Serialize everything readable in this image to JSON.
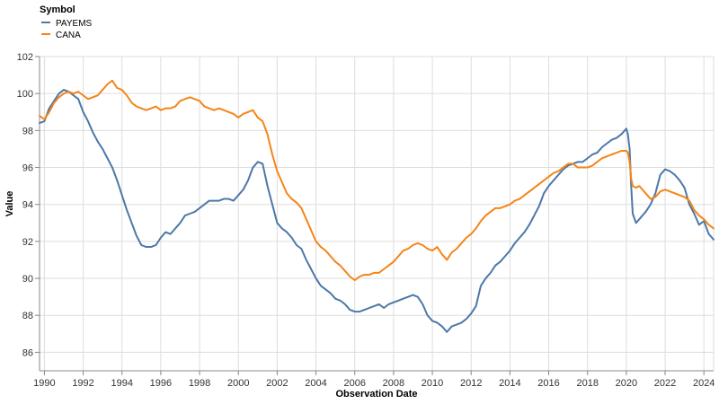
{
  "chart_data": {
    "type": "line",
    "xlabel": "Observation Date",
    "ylabel": "Value",
    "xlim": [
      1989.75,
      2024.5
    ],
    "ylim": [
      85,
      102
    ],
    "x_ticks": [
      1990,
      1992,
      1994,
      1996,
      1998,
      2000,
      2002,
      2004,
      2006,
      2008,
      2010,
      2012,
      2014,
      2016,
      2018,
      2020,
      2022,
      2024
    ],
    "y_ticks": [
      86,
      88,
      90,
      92,
      94,
      96,
      98,
      100,
      102
    ],
    "grid": true,
    "legend": {
      "title": "Symbol",
      "placement": "top-left"
    },
    "series": [
      {
        "name": "PAYEMS",
        "color": "#4c78a8",
        "points": [
          [
            1989.75,
            98.4
          ],
          [
            1990.0,
            98.5
          ],
          [
            1990.25,
            99.2
          ],
          [
            1990.5,
            99.6
          ],
          [
            1990.75,
            100.0
          ],
          [
            1991.0,
            100.2
          ],
          [
            1991.25,
            100.1
          ],
          [
            1991.5,
            99.9
          ],
          [
            1991.75,
            99.7
          ],
          [
            1992.0,
            99.0
          ],
          [
            1992.25,
            98.5
          ],
          [
            1992.5,
            97.9
          ],
          [
            1992.75,
            97.4
          ],
          [
            1993.0,
            97.0
          ],
          [
            1993.25,
            96.5
          ],
          [
            1993.5,
            96.0
          ],
          [
            1993.75,
            95.3
          ],
          [
            1994.0,
            94.5
          ],
          [
            1994.25,
            93.7
          ],
          [
            1994.5,
            93.0
          ],
          [
            1994.75,
            92.3
          ],
          [
            1995.0,
            91.8
          ],
          [
            1995.25,
            91.7
          ],
          [
            1995.5,
            91.7
          ],
          [
            1995.75,
            91.8
          ],
          [
            1996.0,
            92.2
          ],
          [
            1996.25,
            92.5
          ],
          [
            1996.5,
            92.4
          ],
          [
            1996.75,
            92.7
          ],
          [
            1997.0,
            93.0
          ],
          [
            1997.25,
            93.4
          ],
          [
            1997.5,
            93.5
          ],
          [
            1997.75,
            93.6
          ],
          [
            1998.0,
            93.8
          ],
          [
            1998.25,
            94.0
          ],
          [
            1998.5,
            94.2
          ],
          [
            1998.75,
            94.2
          ],
          [
            1999.0,
            94.2
          ],
          [
            1999.25,
            94.3
          ],
          [
            1999.5,
            94.3
          ],
          [
            1999.75,
            94.2
          ],
          [
            2000.0,
            94.5
          ],
          [
            2000.25,
            94.8
          ],
          [
            2000.5,
            95.3
          ],
          [
            2000.75,
            96.0
          ],
          [
            2001.0,
            96.3
          ],
          [
            2001.25,
            96.2
          ],
          [
            2001.5,
            95.0
          ],
          [
            2001.75,
            94.0
          ],
          [
            2002.0,
            93.0
          ],
          [
            2002.25,
            92.7
          ],
          [
            2002.5,
            92.5
          ],
          [
            2002.75,
            92.2
          ],
          [
            2003.0,
            91.8
          ],
          [
            2003.25,
            91.6
          ],
          [
            2003.5,
            91.0
          ],
          [
            2003.75,
            90.5
          ],
          [
            2004.0,
            90.0
          ],
          [
            2004.25,
            89.6
          ],
          [
            2004.5,
            89.4
          ],
          [
            2004.75,
            89.2
          ],
          [
            2005.0,
            88.9
          ],
          [
            2005.25,
            88.8
          ],
          [
            2005.5,
            88.6
          ],
          [
            2005.75,
            88.3
          ],
          [
            2006.0,
            88.2
          ],
          [
            2006.25,
            88.2
          ],
          [
            2006.5,
            88.3
          ],
          [
            2006.75,
            88.4
          ],
          [
            2007.0,
            88.5
          ],
          [
            2007.25,
            88.6
          ],
          [
            2007.5,
            88.4
          ],
          [
            2007.75,
            88.6
          ],
          [
            2008.0,
            88.7
          ],
          [
            2008.25,
            88.8
          ],
          [
            2008.5,
            88.9
          ],
          [
            2008.75,
            89.0
          ],
          [
            2009.0,
            89.1
          ],
          [
            2009.25,
            89.0
          ],
          [
            2009.5,
            88.6
          ],
          [
            2009.75,
            88.0
          ],
          [
            2010.0,
            87.7
          ],
          [
            2010.25,
            87.6
          ],
          [
            2010.5,
            87.4
          ],
          [
            2010.75,
            87.1
          ],
          [
            2011.0,
            87.4
          ],
          [
            2011.25,
            87.5
          ],
          [
            2011.5,
            87.6
          ],
          [
            2011.75,
            87.8
          ],
          [
            2012.0,
            88.1
          ],
          [
            2012.25,
            88.5
          ],
          [
            2012.5,
            89.6
          ],
          [
            2012.75,
            90.0
          ],
          [
            2013.0,
            90.3
          ],
          [
            2013.25,
            90.7
          ],
          [
            2013.5,
            90.9
          ],
          [
            2013.75,
            91.2
          ],
          [
            2014.0,
            91.5
          ],
          [
            2014.25,
            91.9
          ],
          [
            2014.5,
            92.2
          ],
          [
            2014.75,
            92.5
          ],
          [
            2015.0,
            92.9
          ],
          [
            2015.25,
            93.4
          ],
          [
            2015.5,
            93.9
          ],
          [
            2015.75,
            94.6
          ],
          [
            2016.0,
            95.0
          ],
          [
            2016.25,
            95.3
          ],
          [
            2016.5,
            95.6
          ],
          [
            2016.75,
            95.9
          ],
          [
            2017.0,
            96.1
          ],
          [
            2017.25,
            96.2
          ],
          [
            2017.5,
            96.3
          ],
          [
            2017.75,
            96.3
          ],
          [
            2018.0,
            96.5
          ],
          [
            2018.25,
            96.7
          ],
          [
            2018.5,
            96.8
          ],
          [
            2018.75,
            97.1
          ],
          [
            2019.0,
            97.3
          ],
          [
            2019.25,
            97.5
          ],
          [
            2019.5,
            97.6
          ],
          [
            2019.75,
            97.8
          ],
          [
            2020.0,
            98.1
          ],
          [
            2020.08,
            97.8
          ],
          [
            2020.17,
            97.0
          ],
          [
            2020.25,
            95.0
          ],
          [
            2020.33,
            93.5
          ],
          [
            2020.5,
            93.0
          ],
          [
            2020.67,
            93.2
          ],
          [
            2020.83,
            93.4
          ],
          [
            2021.0,
            93.6
          ],
          [
            2021.25,
            94.0
          ],
          [
            2021.5,
            94.6
          ],
          [
            2021.75,
            95.6
          ],
          [
            2022.0,
            95.9
          ],
          [
            2022.25,
            95.8
          ],
          [
            2022.5,
            95.6
          ],
          [
            2022.75,
            95.3
          ],
          [
            2023.0,
            94.9
          ],
          [
            2023.25,
            94.0
          ],
          [
            2023.5,
            93.5
          ],
          [
            2023.75,
            92.9
          ],
          [
            2024.0,
            93.1
          ],
          [
            2024.25,
            92.4
          ],
          [
            2024.5,
            92.1
          ]
        ]
      },
      {
        "name": "CANA",
        "color": "#f58518",
        "points": [
          [
            1989.75,
            98.8
          ],
          [
            1990.0,
            98.6
          ],
          [
            1990.25,
            99.0
          ],
          [
            1990.5,
            99.5
          ],
          [
            1990.75,
            99.8
          ],
          [
            1991.0,
            100.0
          ],
          [
            1991.25,
            100.1
          ],
          [
            1991.5,
            100.0
          ],
          [
            1991.75,
            100.1
          ],
          [
            1992.0,
            99.9
          ],
          [
            1992.25,
            99.7
          ],
          [
            1992.5,
            99.8
          ],
          [
            1992.75,
            99.9
          ],
          [
            1993.0,
            100.2
          ],
          [
            1993.25,
            100.5
          ],
          [
            1993.5,
            100.7
          ],
          [
            1993.75,
            100.3
          ],
          [
            1994.0,
            100.2
          ],
          [
            1994.25,
            99.9
          ],
          [
            1994.5,
            99.5
          ],
          [
            1994.75,
            99.3
          ],
          [
            1995.0,
            99.2
          ],
          [
            1995.25,
            99.1
          ],
          [
            1995.5,
            99.2
          ],
          [
            1995.75,
            99.3
          ],
          [
            1996.0,
            99.1
          ],
          [
            1996.25,
            99.2
          ],
          [
            1996.5,
            99.2
          ],
          [
            1996.75,
            99.3
          ],
          [
            1997.0,
            99.6
          ],
          [
            1997.25,
            99.7
          ],
          [
            1997.5,
            99.8
          ],
          [
            1997.75,
            99.7
          ],
          [
            1998.0,
            99.6
          ],
          [
            1998.25,
            99.3
          ],
          [
            1998.5,
            99.2
          ],
          [
            1998.75,
            99.1
          ],
          [
            1999.0,
            99.2
          ],
          [
            1999.25,
            99.1
          ],
          [
            1999.5,
            99.0
          ],
          [
            1999.75,
            98.9
          ],
          [
            2000.0,
            98.7
          ],
          [
            2000.25,
            98.9
          ],
          [
            2000.5,
            99.0
          ],
          [
            2000.75,
            99.1
          ],
          [
            2001.0,
            98.7
          ],
          [
            2001.25,
            98.5
          ],
          [
            2001.5,
            97.8
          ],
          [
            2001.75,
            96.7
          ],
          [
            2002.0,
            95.8
          ],
          [
            2002.25,
            95.2
          ],
          [
            2002.5,
            94.6
          ],
          [
            2002.75,
            94.3
          ],
          [
            2003.0,
            94.1
          ],
          [
            2003.25,
            93.8
          ],
          [
            2003.5,
            93.2
          ],
          [
            2003.75,
            92.6
          ],
          [
            2004.0,
            92.0
          ],
          [
            2004.25,
            91.7
          ],
          [
            2004.5,
            91.5
          ],
          [
            2004.75,
            91.2
          ],
          [
            2005.0,
            90.9
          ],
          [
            2005.25,
            90.7
          ],
          [
            2005.5,
            90.4
          ],
          [
            2005.75,
            90.1
          ],
          [
            2006.0,
            89.9
          ],
          [
            2006.25,
            90.1
          ],
          [
            2006.5,
            90.2
          ],
          [
            2006.75,
            90.2
          ],
          [
            2007.0,
            90.3
          ],
          [
            2007.25,
            90.3
          ],
          [
            2007.5,
            90.5
          ],
          [
            2007.75,
            90.7
          ],
          [
            2008.0,
            90.9
          ],
          [
            2008.25,
            91.2
          ],
          [
            2008.5,
            91.5
          ],
          [
            2008.75,
            91.6
          ],
          [
            2009.0,
            91.8
          ],
          [
            2009.25,
            91.9
          ],
          [
            2009.5,
            91.8
          ],
          [
            2009.75,
            91.6
          ],
          [
            2010.0,
            91.5
          ],
          [
            2010.25,
            91.7
          ],
          [
            2010.5,
            91.3
          ],
          [
            2010.75,
            91.0
          ],
          [
            2011.0,
            91.4
          ],
          [
            2011.25,
            91.6
          ],
          [
            2011.5,
            91.9
          ],
          [
            2011.75,
            92.2
          ],
          [
            2012.0,
            92.4
          ],
          [
            2012.25,
            92.7
          ],
          [
            2012.5,
            93.1
          ],
          [
            2012.75,
            93.4
          ],
          [
            2013.0,
            93.6
          ],
          [
            2013.25,
            93.8
          ],
          [
            2013.5,
            93.8
          ],
          [
            2013.75,
            93.9
          ],
          [
            2014.0,
            94.0
          ],
          [
            2014.25,
            94.2
          ],
          [
            2014.5,
            94.3
          ],
          [
            2014.75,
            94.5
          ],
          [
            2015.0,
            94.7
          ],
          [
            2015.25,
            94.9
          ],
          [
            2015.5,
            95.1
          ],
          [
            2015.75,
            95.3
          ],
          [
            2016.0,
            95.5
          ],
          [
            2016.25,
            95.7
          ],
          [
            2016.5,
            95.8
          ],
          [
            2016.75,
            96.0
          ],
          [
            2017.0,
            96.2
          ],
          [
            2017.25,
            96.2
          ],
          [
            2017.5,
            96.0
          ],
          [
            2017.75,
            96.0
          ],
          [
            2018.0,
            96.0
          ],
          [
            2018.25,
            96.1
          ],
          [
            2018.5,
            96.3
          ],
          [
            2018.75,
            96.5
          ],
          [
            2019.0,
            96.6
          ],
          [
            2019.25,
            96.7
          ],
          [
            2019.5,
            96.8
          ],
          [
            2019.75,
            96.9
          ],
          [
            2020.0,
            96.9
          ],
          [
            2020.08,
            96.8
          ],
          [
            2020.17,
            96.3
          ],
          [
            2020.25,
            95.4
          ],
          [
            2020.33,
            95.0
          ],
          [
            2020.5,
            94.9
          ],
          [
            2020.67,
            95.0
          ],
          [
            2020.83,
            94.8
          ],
          [
            2021.0,
            94.6
          ],
          [
            2021.25,
            94.3
          ],
          [
            2021.5,
            94.4
          ],
          [
            2021.75,
            94.7
          ],
          [
            2022.0,
            94.8
          ],
          [
            2022.25,
            94.7
          ],
          [
            2022.5,
            94.6
          ],
          [
            2022.75,
            94.5
          ],
          [
            2023.0,
            94.4
          ],
          [
            2023.25,
            94.2
          ],
          [
            2023.5,
            93.7
          ],
          [
            2023.75,
            93.4
          ],
          [
            2024.0,
            93.2
          ],
          [
            2024.25,
            92.9
          ],
          [
            2024.5,
            92.7
          ]
        ]
      }
    ]
  }
}
